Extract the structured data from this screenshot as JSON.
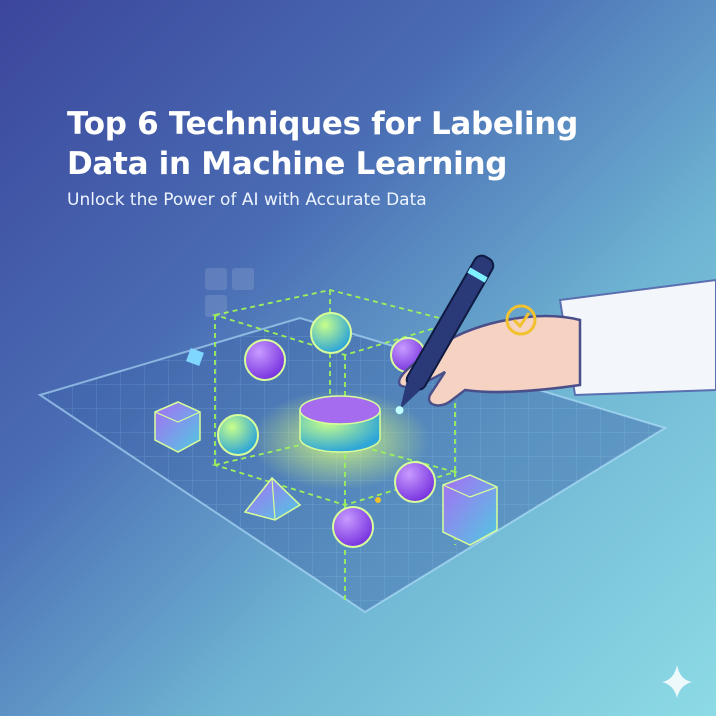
{
  "poster": {
    "title_line1": "Top 6 Techniques for Labeling",
    "title_line2": "Data in Machine Learning",
    "subtitle": "Unlock the Power of AI with Accurate Data"
  },
  "colors": {
    "background_start": "#3b469c",
    "background_end": "#8ddbe6",
    "accent_green": "#9cf25a",
    "accent_purple": "#9a4ef0",
    "accent_teal": "#4ec9e8",
    "check_yellow": "#f2c12e"
  },
  "icons": [
    "data-plane-grid",
    "sphere",
    "cube",
    "cylinder",
    "pyramid",
    "hand-with-stylus",
    "check-circle-icon",
    "sparkle-icon"
  ]
}
